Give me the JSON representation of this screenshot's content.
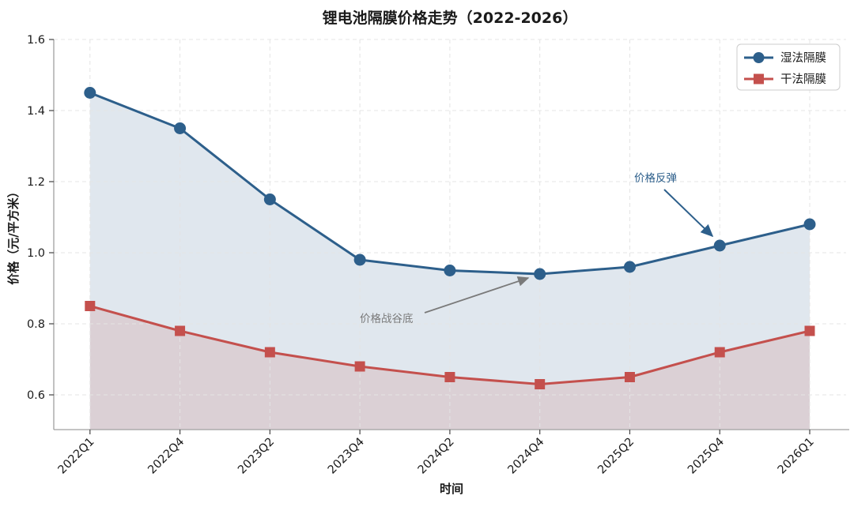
{
  "chart_data": {
    "type": "line",
    "title": "锂电池隔膜价格走势（2022-2026）",
    "xlabel": "时间",
    "ylabel": "价格（元/平方米）",
    "categories": [
      "2022Q1",
      "2022Q4",
      "2023Q2",
      "2023Q4",
      "2024Q2",
      "2024Q4",
      "2025Q2",
      "2025Q4",
      "2026Q1"
    ],
    "series": [
      {
        "name": "湿法隔膜",
        "marker": "circle",
        "color": "#2d5f8b",
        "fill_color": "rgba(45,95,139,0.15)",
        "values": [
          1.45,
          1.35,
          1.15,
          0.98,
          0.95,
          0.94,
          0.96,
          1.02,
          1.08
        ]
      },
      {
        "name": "干法隔膜",
        "marker": "square",
        "color": "#c4504d",
        "fill_color": "rgba(196,80,77,0.15)",
        "values": [
          0.85,
          0.78,
          0.72,
          0.68,
          0.65,
          0.63,
          0.65,
          0.72,
          0.78
        ]
      }
    ],
    "ytick_labels": [
      "0.6",
      "0.8",
      "1.0",
      "1.2",
      "1.4",
      "1.6"
    ],
    "ytick_values": [
      0.6,
      0.8,
      1.0,
      1.2,
      1.4,
      1.6
    ],
    "ylim": [
      0.5,
      1.6
    ],
    "grid": "dashed",
    "area_fill": true,
    "legend_position": "top-right",
    "annotations": [
      {
        "text": "价格战谷底",
        "color": "#7a7a7a",
        "series": "湿法隔膜",
        "category": "2024Q4"
      },
      {
        "text": "价格反弹",
        "color": "#2d5f8b",
        "series": "湿法隔膜",
        "category": "2025Q4"
      }
    ],
    "spine_color": "#a0a0a0",
    "grid_color": "#e4e4e4",
    "tick_color": "#444444"
  }
}
